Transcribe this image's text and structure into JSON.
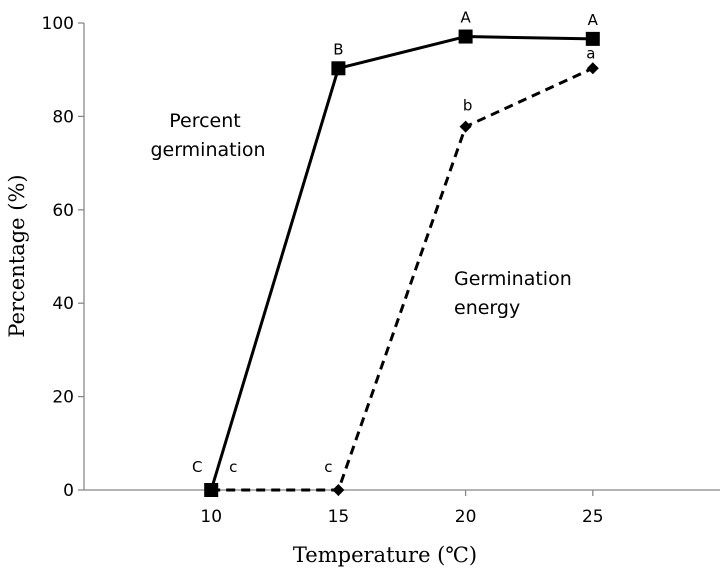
{
  "chart_data": {
    "type": "line",
    "title": "",
    "xlabel": "Temperature (℃)",
    "ylabel": "Percentage (%)",
    "x": [
      10,
      15,
      20,
      25
    ],
    "xlim": [
      5,
      30
    ],
    "ylim": [
      0,
      100
    ],
    "x_ticks": [
      "10",
      "15",
      "20",
      "25"
    ],
    "y_ticks": [
      "0",
      "20",
      "40",
      "60",
      "80",
      "100"
    ],
    "grid": false,
    "series": [
      {
        "name": "Percent germination",
        "label_lines": [
          "Percent",
          "germination"
        ],
        "values": [
          0,
          90.3,
          97.1,
          96.6
        ],
        "letters": [
          "C",
          "B",
          "A",
          "A"
        ],
        "line_style": "solid",
        "marker": "square",
        "color": "#000000"
      },
      {
        "name": "Germination energy",
        "label_lines": [
          "Germination",
          "energy"
        ],
        "values": [
          0,
          0,
          77.8,
          90.3
        ],
        "letters": [
          "c",
          "c",
          "b",
          "a"
        ],
        "line_style": "dashed",
        "marker": "diamond",
        "color": "#000000"
      }
    ]
  }
}
